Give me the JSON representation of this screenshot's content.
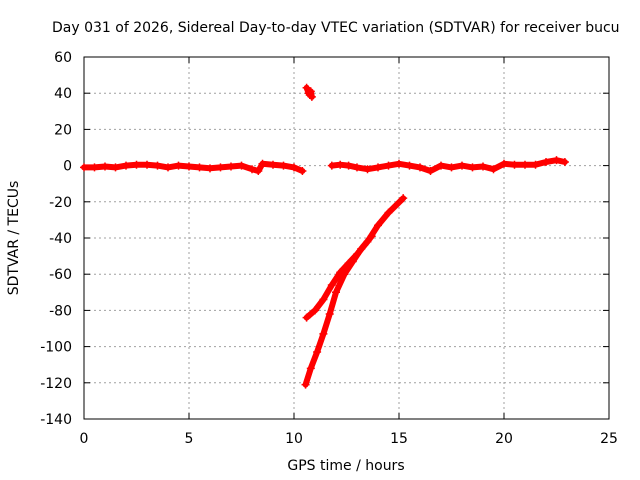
{
  "chart_data": {
    "type": "scatter",
    "title": "Day 031 of 2026, Sidereal Day-to-day VTEC variation (SDTVAR) for receiver bucu",
    "xlabel": "GPS time / hours",
    "ylabel": "SDTVAR / TECUs",
    "xlim": [
      0,
      25
    ],
    "ylim": [
      -140,
      60
    ],
    "xticks": [
      "0",
      "5",
      "10",
      "15",
      "20",
      "25"
    ],
    "yticks": [
      "60",
      "40",
      "20",
      "0",
      "-20",
      "-40",
      "-60",
      "-80",
      "-100",
      "-120",
      "-140"
    ],
    "grid": true,
    "marker": "plus",
    "colors": {
      "series": "#ff0000",
      "grid": "#a0a0a0",
      "axis": "#000000"
    },
    "series": [
      {
        "name": "baseline-early",
        "points": [
          [
            0,
            -1
          ],
          [
            0.5,
            -1
          ],
          [
            1,
            -0.5
          ],
          [
            1.5,
            -1
          ],
          [
            2,
            0
          ],
          [
            2.5,
            0.5
          ],
          [
            3,
            0.5
          ],
          [
            3.5,
            0
          ],
          [
            4,
            -1
          ],
          [
            4.5,
            0
          ],
          [
            5,
            -0.5
          ],
          [
            5.5,
            -1
          ],
          [
            6,
            -1.5
          ],
          [
            6.5,
            -1
          ],
          [
            7,
            -0.5
          ],
          [
            7.5,
            0
          ],
          [
            8,
            -2
          ],
          [
            8.3,
            -3
          ],
          [
            8.5,
            1
          ],
          [
            9,
            0.5
          ],
          [
            9.5,
            0
          ],
          [
            10,
            -1
          ],
          [
            10.4,
            -3
          ]
        ]
      },
      {
        "name": "spike-high",
        "points": [
          [
            10.6,
            43
          ],
          [
            10.7,
            40
          ],
          [
            10.75,
            39
          ],
          [
            10.8,
            41
          ],
          [
            10.85,
            38
          ]
        ]
      },
      {
        "name": "baseline-late",
        "points": [
          [
            11.8,
            0
          ],
          [
            12.2,
            0.5
          ],
          [
            12.6,
            0
          ],
          [
            13,
            -1
          ],
          [
            13.5,
            -2
          ],
          [
            14,
            -1
          ],
          [
            14.5,
            0
          ],
          [
            15,
            1
          ],
          [
            15.5,
            0
          ],
          [
            16,
            -1
          ],
          [
            16.5,
            -3
          ],
          [
            17,
            0
          ],
          [
            17.5,
            -1
          ],
          [
            18,
            0
          ],
          [
            18.5,
            -1
          ],
          [
            19,
            -0.5
          ],
          [
            19.5,
            -2
          ],
          [
            20,
            1
          ],
          [
            20.5,
            0.5
          ],
          [
            21,
            0.5
          ],
          [
            21.5,
            0.5
          ],
          [
            22,
            2
          ],
          [
            22.5,
            3
          ],
          [
            22.9,
            2
          ]
        ]
      },
      {
        "name": "descent-upper",
        "points": [
          [
            10.6,
            -84
          ],
          [
            11,
            -80
          ],
          [
            11.4,
            -74
          ],
          [
            11.8,
            -66
          ],
          [
            12.2,
            -59
          ],
          [
            12.6,
            -54
          ],
          [
            13,
            -49
          ],
          [
            13.5,
            -42
          ],
          [
            14,
            -33
          ],
          [
            14.5,
            -26
          ],
          [
            15.2,
            -18
          ]
        ]
      },
      {
        "name": "descent-lower",
        "points": [
          [
            10.55,
            -121
          ],
          [
            10.8,
            -112
          ],
          [
            11.1,
            -103
          ],
          [
            11.4,
            -93
          ],
          [
            11.7,
            -82
          ],
          [
            12,
            -70
          ],
          [
            12.4,
            -60
          ],
          [
            12.8,
            -53
          ],
          [
            13.2,
            -46
          ],
          [
            13.7,
            -39
          ]
        ]
      }
    ]
  }
}
